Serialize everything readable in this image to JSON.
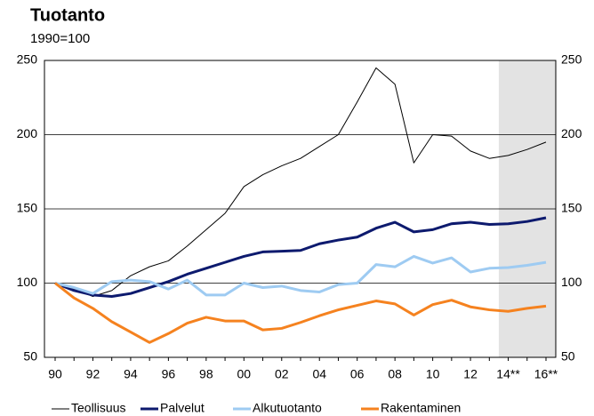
{
  "chart_data": {
    "type": "line",
    "title": "Tuotanto",
    "subtitle": "1990=100",
    "categories": [
      "90",
      null,
      "92",
      null,
      "94",
      null,
      "96",
      null,
      "98",
      null,
      "00",
      null,
      "02",
      null,
      "04",
      null,
      "06",
      null,
      "08",
      null,
      "10",
      null,
      "12",
      null,
      "14**",
      null,
      "16**"
    ],
    "series": [
      {
        "name": "Teollisuus",
        "color": "#000000",
        "values": [
          100,
          96,
          91,
          95,
          105,
          111,
          115,
          125,
          136,
          147,
          165,
          173,
          179,
          184,
          192,
          200,
          222,
          245,
          234,
          181,
          200,
          199,
          189,
          184,
          186,
          190,
          195
        ]
      },
      {
        "name": "Palvelut",
        "color": "#0d1a6e",
        "values": [
          100,
          95,
          92,
          91,
          93,
          97,
          101,
          106,
          110,
          114,
          118,
          121,
          121.5,
          122,
          126.5,
          129,
          131,
          137,
          141,
          134.5,
          136,
          140,
          141,
          139.5,
          140,
          141.5,
          144
        ]
      },
      {
        "name": "Alkutuotanto",
        "color": "#9ecbf2",
        "values": [
          100,
          97,
          93,
          101,
          102,
          101,
          96,
          102,
          92,
          92,
          100,
          97,
          98,
          95,
          94,
          99,
          100,
          112.5,
          111,
          118,
          113.5,
          117,
          107.5,
          110,
          110.5,
          112,
          114
        ]
      },
      {
        "name": "Rakentaminen",
        "color": "#f5821f",
        "values": [
          100,
          90,
          83,
          74,
          67,
          60,
          66,
          73,
          77,
          74.5,
          74.5,
          68.5,
          69.5,
          73.5,
          78,
          82,
          85,
          88,
          86,
          78.5,
          85.5,
          88.5,
          84,
          82,
          81,
          83,
          84.5
        ]
      }
    ],
    "ylim": [
      50,
      250
    ],
    "yticks": [
      50,
      100,
      150,
      200,
      250
    ],
    "y2lim": [
      50,
      250
    ],
    "y2ticks": [
      50,
      100,
      150,
      200,
      250
    ],
    "grid": true,
    "legend": "bottom"
  }
}
